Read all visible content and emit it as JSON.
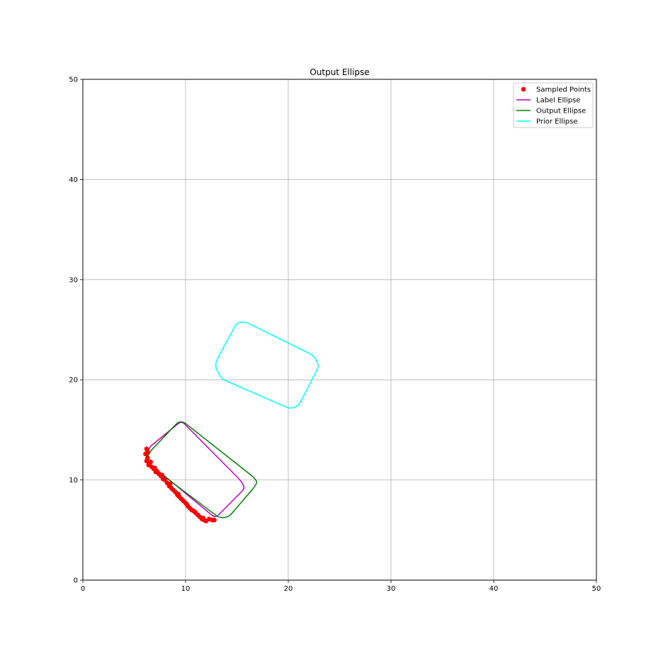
{
  "chart_data": {
    "type": "scatter",
    "title": "Output Ellipse",
    "xlabel": "",
    "ylabel": "",
    "xlim": [
      0,
      50
    ],
    "ylim": [
      0,
      50
    ],
    "x_ticks": [
      "0",
      "10",
      "20",
      "30",
      "40",
      "50"
    ],
    "y_ticks": [
      "0",
      "10",
      "20",
      "30",
      "40",
      "50"
    ],
    "grid": true,
    "legend_position": "top-right",
    "series": [
      {
        "name": "Sampled Points",
        "kind": "scatter",
        "color": "#ff0000",
        "x": [
          6.2,
          6.1,
          6.3,
          6.2,
          6.5,
          6.4,
          6.7,
          6.9,
          7.0,
          7.2,
          7.4,
          7.6,
          7.8,
          8.0,
          8.2,
          8.4,
          8.6,
          8.8,
          9.0,
          9.2,
          9.4,
          9.6,
          9.8,
          10.0,
          10.2,
          10.4,
          10.6,
          10.8,
          11.0,
          11.2,
          11.4,
          11.6,
          11.8,
          12.0,
          12.3,
          12.6,
          12.8,
          6.3,
          6.6,
          7.1,
          7.7,
          8.5,
          9.3,
          10.1,
          10.9,
          11.7
        ],
        "y": [
          13.1,
          12.6,
          12.2,
          11.9,
          11.7,
          11.5,
          11.3,
          11.1,
          11.2,
          10.9,
          10.6,
          10.4,
          10.1,
          10.0,
          9.7,
          9.4,
          9.2,
          9.0,
          8.8,
          8.5,
          8.3,
          8.1,
          7.9,
          7.7,
          7.4,
          7.2,
          7.0,
          6.9,
          6.7,
          6.5,
          6.3,
          6.1,
          6.0,
          5.9,
          6.1,
          6.0,
          6.0,
          12.8,
          11.8,
          10.8,
          10.5,
          9.6,
          8.6,
          7.6,
          6.8,
          6.2
        ]
      },
      {
        "name": "Label Ellipse",
        "kind": "line",
        "color": "#c000c0",
        "x": [
          6.4,
          9.6,
          15.4,
          15.8,
          12.9,
          6.2,
          6.4
        ],
        "y": [
          13.2,
          15.9,
          9.9,
          9.2,
          6.2,
          11.9,
          13.2
        ]
      },
      {
        "name": "Output Ellipse",
        "kind": "line",
        "color": "#008000",
        "x": [
          6.6,
          9.3,
          9.8,
          16.6,
          17.0,
          16.7,
          14.2,
          13.3,
          6.2,
          6.3,
          6.6
        ],
        "y": [
          12.9,
          15.8,
          15.8,
          10.3,
          9.8,
          9.3,
          6.3,
          6.2,
          11.7,
          12.3,
          12.9
        ]
      },
      {
        "name": "Prior Ellipse",
        "kind": "line",
        "color": "#00ffff",
        "x": [
          13.0,
          15.0,
          15.8,
          22.5,
          23.0,
          21.0,
          20.2,
          13.5,
          12.9,
          13.0
        ],
        "y": [
          21.9,
          25.7,
          25.8,
          22.4,
          21.4,
          17.4,
          17.1,
          20.1,
          21.3,
          21.9
        ]
      }
    ]
  }
}
